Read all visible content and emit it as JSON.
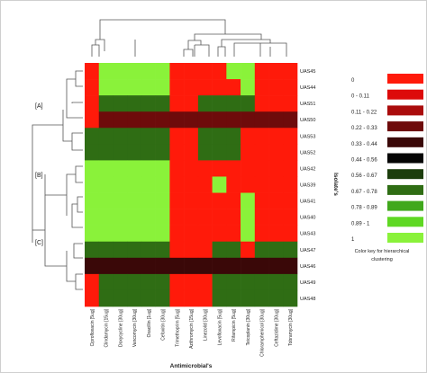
{
  "chart_data": {
    "type": "heatmap",
    "xlabel": "Antimicrobial's",
    "ylabel": "Isolate's",
    "columns": [
      "Ciprofloxacin [5ug]",
      "Clindamycin [15ug]",
      "Doxycycline [30ug]",
      "Vancomycin [30ug]",
      "Oxacillin [1ug]",
      "Cefoxitin [30ug]",
      "Trimethoprim [5ug]",
      "Azithromycin [15ug]",
      "Linezolid [30ug]",
      "Levofloxacin [5ug]",
      "Rifampicin [5ug]",
      "Teicoplanin [30ug]",
      "Chloramphenicol [30ug]",
      "Ceftazidime [30ug]",
      "Tobramycin [30ug]"
    ],
    "rows": [
      "UAS45",
      "UAS44",
      "UAS51",
      "UAS50",
      "UAS53",
      "UAS52",
      "UAS42",
      "UAS39",
      "UAS41",
      "UAS40",
      "UAS43",
      "UAS47",
      "UAS46",
      "UAS49",
      "UAS48"
    ],
    "values": [
      [
        0,
        1,
        1,
        1,
        1,
        1,
        0,
        0,
        0,
        0,
        1,
        1,
        0,
        0,
        0
      ],
      [
        0,
        1,
        1,
        1,
        1,
        1,
        0,
        0,
        0,
        0,
        0,
        1,
        0,
        0,
        0
      ],
      [
        0,
        0.67,
        0.67,
        0.67,
        0.67,
        0.67,
        0,
        0,
        0.67,
        0.67,
        0.67,
        0.67,
        0,
        0,
        0
      ],
      [
        0,
        0.33,
        0.33,
        0.33,
        0.33,
        0.33,
        0.33,
        0.33,
        0.33,
        0.33,
        0.33,
        0.33,
        0.33,
        0.33,
        0.33
      ],
      [
        0.67,
        0.67,
        0.67,
        0.67,
        0.67,
        0.67,
        0,
        0,
        0.67,
        0.67,
        0.67,
        0,
        0,
        0,
        0
      ],
      [
        0.67,
        0.67,
        0.67,
        0.67,
        0.67,
        0.67,
        0,
        0,
        0.67,
        0.67,
        0.67,
        0,
        0,
        0,
        0
      ],
      [
        1,
        1,
        1,
        1,
        1,
        1,
        0,
        0,
        0,
        0,
        0,
        0,
        0,
        0,
        0
      ],
      [
        1,
        1,
        1,
        1,
        1,
        1,
        0,
        0,
        0,
        1,
        0,
        0,
        0,
        0,
        0
      ],
      [
        1,
        1,
        1,
        1,
        1,
        1,
        0,
        0,
        0,
        0,
        0,
        1,
        0,
        0,
        0
      ],
      [
        1,
        1,
        1,
        1,
        1,
        1,
        0,
        0,
        0,
        0,
        0,
        1,
        0,
        0,
        0
      ],
      [
        1,
        1,
        1,
        1,
        1,
        1,
        0,
        0,
        0,
        0,
        0,
        1,
        0,
        0,
        0
      ],
      [
        0.67,
        0.67,
        0.67,
        0.67,
        0.67,
        0.67,
        0,
        0,
        0,
        0.67,
        0.67,
        0,
        0.67,
        0.67,
        0.67
      ],
      [
        0.44,
        0.44,
        0.44,
        0.44,
        0.44,
        0.44,
        0.44,
        0.44,
        0.44,
        0.44,
        0.44,
        0.44,
        0.44,
        0.44,
        0.44
      ],
      [
        0,
        0.67,
        0.67,
        0.67,
        0.67,
        0.67,
        0,
        0,
        0,
        0.67,
        0.67,
        0.67,
        0.67,
        0.67,
        0.67
      ],
      [
        0,
        0.67,
        0.67,
        0.67,
        0.67,
        0.67,
        0,
        0,
        0,
        0.67,
        0.67,
        0.67,
        0.67,
        0.67,
        0.67
      ]
    ],
    "groups": [
      {
        "label": "[A]"
      },
      {
        "label": "[B]"
      },
      {
        "label": "[C]"
      }
    ],
    "legend": {
      "title": "Color key for hierarchical clustering",
      "entries": [
        {
          "label": "0",
          "color": "#ff1a0a"
        },
        {
          "label": "0 - 0.11",
          "color": "#dd0a0a"
        },
        {
          "label": "0.11 - 0.22",
          "color": "#aa0c0c"
        },
        {
          "label": "0.22 - 0.33",
          "color": "#6e0b0b"
        },
        {
          "label": "0.33 - 0.44",
          "color": "#3a0808"
        },
        {
          "label": "0.44 - 0.56",
          "color": "#050505"
        },
        {
          "label": "0.56 - 0.67",
          "color": "#1c3d0c"
        },
        {
          "label": "0.67 - 0.78",
          "color": "#2f6d14"
        },
        {
          "label": "0.78 - 0.89",
          "color": "#40a81c"
        },
        {
          "label": "0.89 - 1",
          "color": "#5fd823"
        },
        {
          "label": "1",
          "color": "#8af23a"
        }
      ]
    }
  }
}
